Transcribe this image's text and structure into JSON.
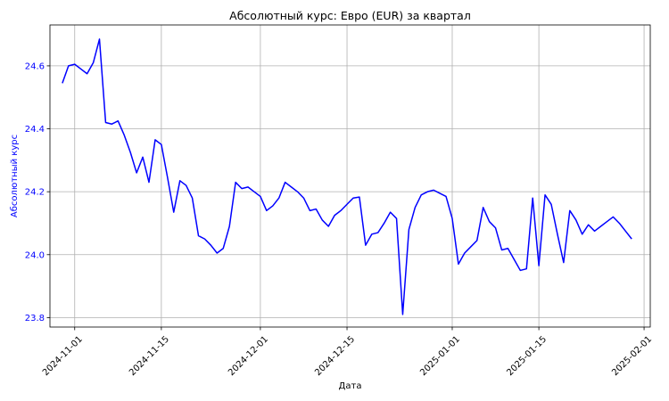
{
  "chart_data": {
    "type": "line",
    "title": "Абсолютный курс: Евро (EUR) за квартал",
    "xlabel": "Дата",
    "ylabel": "Абсолютный курс",
    "grid": true,
    "line_color": "#0000ff",
    "ylim": [
      23.77,
      24.73
    ],
    "xlim": [
      "2024-10-28",
      "2025-02-02"
    ],
    "y_ticks": [
      "23.8",
      "24.0",
      "24.2",
      "24.4",
      "24.6"
    ],
    "x_ticks": [
      "2024-11-01",
      "2024-11-15",
      "2024-12-01",
      "2024-12-15",
      "2025-01-01",
      "2025-01-15",
      "2025-02-01"
    ],
    "series": [
      {
        "x": [
          "2024-10-30",
          "2024-10-31",
          "2024-11-01",
          "2024-11-02",
          "2024-11-03",
          "2024-11-04",
          "2024-11-05",
          "2024-11-06",
          "2024-11-07",
          "2024-11-08",
          "2024-11-09",
          "2024-11-10",
          "2024-11-11",
          "2024-11-12",
          "2024-11-13",
          "2024-11-14",
          "2024-11-15",
          "2024-11-16",
          "2024-11-17",
          "2024-11-18",
          "2024-11-19",
          "2024-11-20",
          "2024-11-21",
          "2024-11-22",
          "2024-11-23",
          "2024-11-24",
          "2024-11-25",
          "2024-11-26",
          "2024-11-27",
          "2024-11-28",
          "2024-11-29",
          "2024-11-30",
          "2024-12-01",
          "2024-12-02",
          "2024-12-03",
          "2024-12-04",
          "2024-12-05",
          "2024-12-06",
          "2024-12-07",
          "2024-12-08",
          "2024-12-09",
          "2024-12-10",
          "2024-12-11",
          "2024-12-12",
          "2024-12-13",
          "2024-12-14",
          "2024-12-15",
          "2024-12-16",
          "2024-12-17",
          "2024-12-18",
          "2024-12-19",
          "2024-12-20",
          "2024-12-21",
          "2024-12-22",
          "2024-12-23",
          "2024-12-24",
          "2024-12-25",
          "2024-12-26",
          "2024-12-27",
          "2024-12-28",
          "2024-12-29",
          "2024-12-30",
          "2024-12-31",
          "2025-01-01",
          "2025-01-02",
          "2025-01-03",
          "2025-01-04",
          "2025-01-05",
          "2025-01-06",
          "2025-01-07",
          "2025-01-08",
          "2025-01-09",
          "2025-01-10",
          "2025-01-11",
          "2025-01-12",
          "2025-01-13",
          "2025-01-14",
          "2025-01-15",
          "2025-01-16",
          "2025-01-17",
          "2025-01-18",
          "2025-01-19",
          "2025-01-20",
          "2025-01-21",
          "2025-01-22",
          "2025-01-23",
          "2025-01-24",
          "2025-01-25",
          "2025-01-26",
          "2025-01-27",
          "2025-01-28",
          "2025-01-29",
          "2025-01-30"
        ],
        "y": [
          24.545,
          24.6,
          24.605,
          24.59,
          24.575,
          24.61,
          24.685,
          24.42,
          24.415,
          24.425,
          24.38,
          24.325,
          24.26,
          24.31,
          24.23,
          24.365,
          24.35,
          24.245,
          24.135,
          24.235,
          24.22,
          24.18,
          24.06,
          24.05,
          24.03,
          24.005,
          24.02,
          24.09,
          24.23,
          24.21,
          24.215,
          24.2,
          24.185,
          24.14,
          24.155,
          24.18,
          24.23,
          24.215,
          24.2,
          24.18,
          24.14,
          24.145,
          24.11,
          24.09,
          24.125,
          24.14,
          24.16,
          24.18,
          24.183,
          24.03,
          24.065,
          24.07,
          24.1,
          24.135,
          24.115,
          23.81,
          24.08,
          24.15,
          24.19,
          24.2,
          24.205,
          24.195,
          24.185,
          24.115,
          23.97,
          24.005,
          24.025,
          24.045,
          24.15,
          24.105,
          24.085,
          24.015,
          24.02,
          23.985,
          23.95,
          23.955,
          24.18,
          23.965,
          24.19,
          24.16,
          24.065,
          23.975,
          24.14,
          24.11,
          24.065,
          24.095,
          24.075,
          24.09,
          24.105,
          24.12,
          24.1,
          24.075,
          24.05
        ]
      }
    ]
  }
}
